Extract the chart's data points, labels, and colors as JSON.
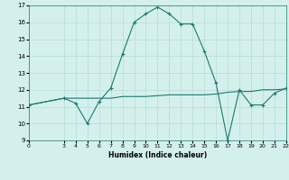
{
  "title": "",
  "xlabel": "Humidex (Indice chaleur)",
  "line1_x": [
    0,
    3,
    4,
    5,
    6,
    7,
    8,
    9,
    10,
    11,
    12,
    13,
    14,
    15,
    16,
    17,
    18,
    19,
    20,
    21,
    22
  ],
  "line1_y": [
    11.1,
    11.5,
    11.2,
    10.0,
    11.3,
    12.1,
    14.1,
    16.0,
    16.5,
    16.9,
    16.5,
    15.9,
    15.9,
    14.3,
    12.4,
    9.0,
    12.0,
    11.1,
    11.1,
    11.8,
    12.1
  ],
  "line2_x": [
    0,
    3,
    4,
    5,
    6,
    7,
    8,
    9,
    10,
    11,
    12,
    13,
    14,
    15,
    16,
    17,
    18,
    19,
    20,
    21,
    22
  ],
  "line2_y": [
    11.1,
    11.5,
    11.5,
    11.5,
    11.5,
    11.5,
    11.6,
    11.6,
    11.6,
    11.65,
    11.7,
    11.7,
    11.7,
    11.7,
    11.75,
    11.85,
    11.9,
    11.9,
    12.0,
    12.0,
    12.05
  ],
  "line_color": "#1a7a6e",
  "bg_color": "#d4f0ec",
  "grid_color": "#b8dbd7",
  "ylim": [
    9,
    17
  ],
  "xlim": [
    0,
    22
  ],
  "yticks": [
    9,
    10,
    11,
    12,
    13,
    14,
    15,
    16,
    17
  ],
  "xticks": [
    0,
    3,
    4,
    5,
    6,
    7,
    8,
    9,
    10,
    11,
    12,
    13,
    14,
    15,
    16,
    17,
    18,
    19,
    20,
    21,
    22
  ]
}
